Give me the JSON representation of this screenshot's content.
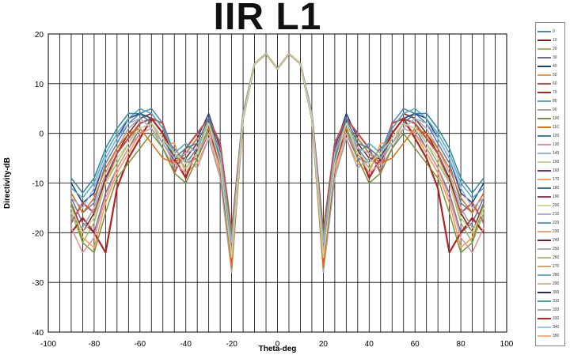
{
  "chart_data": {
    "type": "line",
    "title": "IIR L1",
    "xlabel": "Theta-deg",
    "ylabel": "Directivity-dB",
    "xlim": [
      -100,
      100
    ],
    "ylim": [
      -40,
      20
    ],
    "x_ticks": [
      -100,
      -80,
      -60,
      -40,
      -20,
      0,
      20,
      40,
      60,
      80,
      100
    ],
    "y_ticks": [
      -40,
      -30,
      -20,
      -10,
      0,
      10,
      20
    ],
    "x_gridline_step": 5,
    "grid": true,
    "legend_position": "right",
    "x": [
      -90,
      -85,
      -80,
      -75,
      -70,
      -65,
      -60,
      -55,
      -50,
      -45,
      -40,
      -35,
      -30,
      -25,
      -20,
      -15,
      -10,
      -5,
      0,
      5,
      10,
      15,
      20,
      25,
      30,
      35,
      40,
      45,
      50,
      55,
      60,
      65,
      70,
      75,
      80,
      85,
      90
    ],
    "series": [
      {
        "name": "0",
        "color": "#4f81bd",
        "values": [
          -12,
          -16,
          -14,
          -6,
          -2,
          2,
          4,
          5,
          2,
          -4,
          -6,
          -3,
          2,
          -2,
          -20,
          4,
          14,
          16,
          13,
          16,
          14,
          4,
          -20,
          -2,
          2,
          -3,
          -6,
          -4,
          2,
          5,
          4,
          2,
          -2,
          -6,
          -14,
          -16,
          -12
        ]
      },
      {
        "name": "10",
        "color": "#7f1f1f",
        "values": [
          -14,
          -20,
          -16,
          -9,
          -4,
          0,
          3,
          4,
          1,
          -5,
          -5,
          -2,
          3,
          -4,
          -22,
          3,
          14,
          16,
          13,
          16,
          14,
          3,
          -22,
          -4,
          3,
          -2,
          -5,
          -5,
          1,
          4,
          3,
          0,
          -4,
          -9,
          -16,
          -20,
          -14
        ]
      },
      {
        "name": "20",
        "color": "#9bbb59",
        "values": [
          -16,
          -22,
          -18,
          -10,
          -6,
          -2,
          2,
          3,
          0,
          -4,
          -7,
          -4,
          1,
          -5,
          -21,
          3,
          14,
          16,
          13,
          16,
          14,
          3,
          -21,
          -5,
          1,
          -4,
          -7,
          -4,
          0,
          3,
          2,
          -2,
          -6,
          -10,
          -18,
          -22,
          -16
        ]
      },
      {
        "name": "30",
        "color": "#8064a2",
        "values": [
          -13,
          -18,
          -20,
          -12,
          -7,
          -3,
          1,
          2,
          -1,
          -3,
          -6,
          -5,
          0,
          -6,
          -24,
          3,
          14,
          16,
          13,
          16,
          14,
          3,
          -24,
          -6,
          0,
          -5,
          -6,
          -3,
          -1,
          2,
          1,
          -3,
          -7,
          -12,
          -20,
          -18,
          -13
        ]
      },
      {
        "name": "40",
        "color": "#1f3c88",
        "values": [
          -10,
          -14,
          -12,
          -5,
          -1,
          3,
          4,
          3,
          0,
          -6,
          -4,
          -1,
          4,
          -3,
          -23,
          4,
          14,
          16,
          13,
          16,
          14,
          4,
          -23,
          -3,
          4,
          -1,
          -4,
          -6,
          0,
          3,
          4,
          3,
          -1,
          -5,
          -12,
          -14,
          -10
        ]
      },
      {
        "name": "50",
        "color": "#f79646",
        "values": [
          -15,
          -21,
          -23,
          -14,
          -8,
          -4,
          0,
          2,
          -2,
          -2,
          -8,
          -6,
          -1,
          -8,
          -25,
          3,
          14,
          16,
          13,
          16,
          14,
          3,
          -25,
          -8,
          -1,
          -6,
          -8,
          -2,
          -2,
          2,
          0,
          -4,
          -8,
          -14,
          -23,
          -21,
          -15
        ]
      },
      {
        "name": "60",
        "color": "#c0504d",
        "values": [
          -18,
          -14,
          -16,
          -10,
          -4,
          -1,
          2,
          3,
          2,
          -8,
          -3,
          0,
          3,
          -2,
          -20,
          4,
          14,
          16,
          13,
          16,
          14,
          4,
          -20,
          -2,
          3,
          0,
          -3,
          -8,
          2,
          3,
          2,
          -1,
          -4,
          -10,
          -16,
          -14,
          -18
        ]
      },
      {
        "name": "70",
        "color": "#b22222",
        "values": [
          -20,
          -17,
          -20,
          -24,
          -11,
          -5,
          -1,
          3,
          0,
          -5,
          -9,
          -3,
          2,
          -7,
          -26,
          3,
          14,
          16,
          13,
          16,
          14,
          3,
          -26,
          -7,
          2,
          -3,
          -9,
          -5,
          0,
          3,
          -1,
          -5,
          -11,
          -24,
          -20,
          -17,
          -20
        ]
      },
      {
        "name": "80",
        "color": "#4bacc6",
        "values": [
          -11,
          -13,
          -10,
          -4,
          0,
          3,
          5,
          4,
          1,
          -4,
          -2,
          -4,
          2,
          -6,
          -22,
          4,
          14,
          16,
          13,
          16,
          14,
          4,
          -22,
          -6,
          2,
          -4,
          -2,
          -4,
          1,
          4,
          5,
          3,
          0,
          -4,
          -10,
          -13,
          -11
        ]
      },
      {
        "name": "90",
        "color": "#a5a5a5",
        "values": [
          -17,
          -19,
          -15,
          -8,
          -3,
          1,
          3,
          1,
          -3,
          -7,
          -5,
          -7,
          -1,
          -9,
          -28,
          3,
          14,
          16,
          13,
          16,
          14,
          3,
          -28,
          -9,
          -1,
          -7,
          -5,
          -7,
          -3,
          1,
          3,
          1,
          -3,
          -8,
          -15,
          -19,
          -17
        ]
      },
      {
        "name": "100",
        "color": "#77933c",
        "values": [
          -14,
          -22,
          -24,
          -16,
          -9,
          -6,
          -3,
          0,
          -3,
          -8,
          -10,
          -5,
          1,
          -4,
          -21,
          3,
          14,
          16,
          13,
          16,
          14,
          3,
          -21,
          -4,
          1,
          -5,
          -10,
          -8,
          -3,
          0,
          -3,
          -6,
          -9,
          -16,
          -24,
          -22,
          -14
        ]
      },
      {
        "name": "110",
        "color": "#e46c0a",
        "values": [
          -12,
          -16,
          -13,
          -7,
          -3,
          0,
          1,
          -2,
          -5,
          -6,
          -4,
          -1,
          1,
          -5,
          -27,
          3,
          14,
          16,
          13,
          16,
          14,
          3,
          -27,
          -5,
          1,
          -1,
          -4,
          -6,
          -5,
          -2,
          1,
          0,
          -3,
          -7,
          -13,
          -16,
          -12
        ]
      },
      {
        "name": "120",
        "color": "#31859c",
        "values": [
          -9,
          -12,
          -9,
          -3,
          1,
          4,
          4,
          2,
          -1,
          -5,
          -3,
          -2,
          3,
          -5,
          -23,
          4,
          14,
          16,
          13,
          16,
          14,
          4,
          -23,
          -5,
          3,
          -2,
          -3,
          -5,
          -1,
          2,
          4,
          4,
          1,
          -3,
          -9,
          -12,
          -9
        ]
      },
      {
        "name": "130",
        "color": "#d99694",
        "values": [
          -19,
          -24,
          -21,
          -13,
          -7,
          -3,
          0,
          1,
          -2,
          -6,
          -8,
          -4,
          0,
          -7,
          -24,
          3,
          14,
          16,
          13,
          16,
          14,
          3,
          -24,
          -7,
          0,
          -4,
          -8,
          -6,
          -2,
          1,
          0,
          -3,
          -7,
          -13,
          -21,
          -24,
          -19
        ]
      },
      {
        "name": "140",
        "color": "#95b3d7",
        "values": [
          -13,
          -15,
          -11,
          -5,
          -1,
          2,
          3,
          1,
          -2,
          -5,
          -4,
          -3,
          2,
          -4,
          -22,
          4,
          14,
          16,
          13,
          16,
          14,
          4,
          -22,
          -4,
          2,
          -3,
          -4,
          -5,
          -2,
          1,
          3,
          2,
          -1,
          -5,
          -11,
          -15,
          -13
        ]
      },
      {
        "name": "150",
        "color": "#c3d69b",
        "values": [
          -15,
          -20,
          -17,
          -10,
          -5,
          -2,
          1,
          2,
          -1,
          -4,
          -6,
          -4,
          2,
          -6,
          -25,
          3,
          14,
          16,
          13,
          16,
          14,
          3,
          -25,
          -6,
          2,
          -4,
          -6,
          -4,
          -1,
          2,
          1,
          -2,
          -5,
          -10,
          -17,
          -20,
          -15
        ]
      }
    ],
    "legend_entries": [
      {
        "label": "0",
        "color": "#4f81bd"
      },
      {
        "label": "10",
        "color": "#7f1f1f"
      },
      {
        "label": "20",
        "color": "#9bbb59"
      },
      {
        "label": "30",
        "color": "#8064a2"
      },
      {
        "label": "40",
        "color": "#1f3c88"
      },
      {
        "label": "50",
        "color": "#f79646"
      },
      {
        "label": "60",
        "color": "#c0504d"
      },
      {
        "label": "70",
        "color": "#b22222"
      },
      {
        "label": "80",
        "color": "#4bacc6"
      },
      {
        "label": "90",
        "color": "#a5a5a5"
      },
      {
        "label": "100",
        "color": "#77933c"
      },
      {
        "label": "110",
        "color": "#e46c0a"
      },
      {
        "label": "120",
        "color": "#31859c"
      },
      {
        "label": "130",
        "color": "#d99694"
      },
      {
        "label": "140",
        "color": "#95b3d7"
      },
      {
        "label": "150",
        "color": "#c3d69b"
      },
      {
        "label": "160",
        "color": "#7030a0"
      },
      {
        "label": "170",
        "color": "#ff9966"
      },
      {
        "label": "180",
        "color": "#2e75b6"
      },
      {
        "label": "190",
        "color": "#a04040"
      },
      {
        "label": "200",
        "color": "#c9d98f"
      },
      {
        "label": "210",
        "color": "#b7a6cf"
      },
      {
        "label": "220",
        "color": "#5b9bd5"
      },
      {
        "label": "230",
        "color": "#e2a96b"
      },
      {
        "label": "240",
        "color": "#8b1a1a"
      },
      {
        "label": "250",
        "color": "#b0b0b0"
      },
      {
        "label": "260",
        "color": "#a9c46c"
      },
      {
        "label": "270",
        "color": "#d6a56b"
      },
      {
        "label": "280",
        "color": "#6fa8dc"
      },
      {
        "label": "290",
        "color": "#d9b38c"
      },
      {
        "label": "300",
        "color": "#1f2a6b"
      },
      {
        "label": "310",
        "color": "#4aa3a3"
      },
      {
        "label": "320",
        "color": "#b5a0c8"
      },
      {
        "label": "330",
        "color": "#cc2222"
      },
      {
        "label": "340",
        "color": "#9dc3e6"
      },
      {
        "label": "350",
        "color": "#f4b183"
      }
    ]
  }
}
